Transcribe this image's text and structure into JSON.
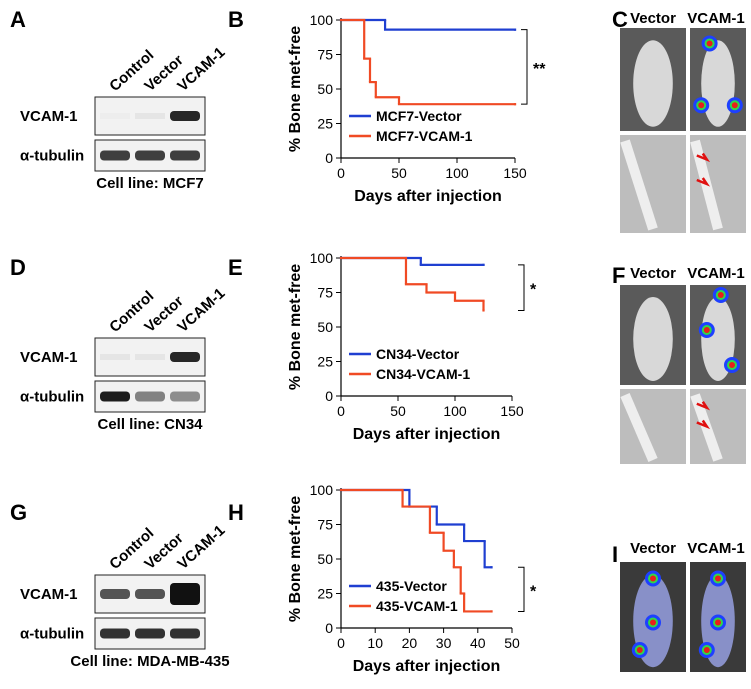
{
  "chart_data": [
    {
      "type": "line",
      "step": true,
      "ylabel": "% Bone met-free",
      "xlabel": "Days after injection",
      "xlim": [
        0,
        150
      ],
      "xticks": [
        0,
        50,
        100,
        150
      ],
      "ylim": [
        0,
        100
      ],
      "yticks": [
        0,
        25,
        50,
        75,
        100
      ],
      "legend": "lower left",
      "annotation": "**",
      "series": [
        {
          "name": "MCF7-Vector",
          "color": "#1f3fd1",
          "x": [
            0,
            38,
            150
          ],
          "values": [
            100,
            93,
            93
          ]
        },
        {
          "name": "MCF7-VCAM-1",
          "color": "#f04a24",
          "x": [
            0,
            20,
            25,
            30,
            50,
            150
          ],
          "values": [
            100,
            72,
            55,
            44,
            39,
            39
          ]
        }
      ]
    },
    {
      "type": "line",
      "step": true,
      "ylabel": "% Bone met-free",
      "xlabel": "Days after injection",
      "xlim": [
        0,
        150
      ],
      "xticks": [
        0,
        50,
        100,
        150
      ],
      "ylim": [
        0,
        100
      ],
      "yticks": [
        0,
        25,
        50,
        75,
        100
      ],
      "legend": "lower left",
      "annotation": "*",
      "series": [
        {
          "name": "CN34-Vector",
          "color": "#1f3fd1",
          "x": [
            0,
            70,
            125
          ],
          "values": [
            100,
            95,
            95
          ]
        },
        {
          "name": "CN34-VCAM-1",
          "color": "#f04a24",
          "x": [
            0,
            57,
            75,
            100,
            125
          ],
          "values": [
            100,
            81,
            75,
            69,
            62
          ]
        }
      ]
    },
    {
      "type": "line",
      "step": true,
      "ylabel": "% Bone met-free",
      "xlabel": "Days after injection",
      "xlim": [
        0,
        50
      ],
      "xticks": [
        0,
        10,
        20,
        30,
        40,
        50
      ],
      "ylim": [
        0,
        100
      ],
      "yticks": [
        0,
        25,
        50,
        75,
        100
      ],
      "legend": "lower left",
      "annotation": "*",
      "series": [
        {
          "name": "435-Vector",
          "color": "#1f3fd1",
          "x": [
            0,
            20,
            28,
            36,
            42,
            44
          ],
          "values": [
            100,
            88,
            75,
            63,
            44,
            44
          ]
        },
        {
          "name": "435-VCAM-1",
          "color": "#f04a24",
          "x": [
            0,
            18,
            26,
            30,
            33,
            35,
            36,
            44
          ],
          "values": [
            100,
            88,
            69,
            56,
            44,
            25,
            12,
            12
          ]
        }
      ]
    }
  ],
  "panels": {
    "letters": [
      "A",
      "B",
      "C",
      "D",
      "E",
      "F",
      "G",
      "H",
      "I"
    ],
    "blots": [
      {
        "lanes": [
          "Control",
          "Vector",
          "VCAM-1"
        ],
        "rows": [
          "VCAM-1",
          "α-tubulin"
        ],
        "caption": "Cell line: MCF7"
      },
      {
        "lanes": [
          "Control",
          "Vector",
          "VCAM-1"
        ],
        "rows": [
          "VCAM-1",
          "α-tubulin"
        ],
        "caption": "Cell line: CN34"
      },
      {
        "lanes": [
          "Control",
          "Vector",
          "VCAM-1"
        ],
        "rows": [
          "VCAM-1",
          "α-tubulin"
        ],
        "caption": "Cell line: MDA-MB-435"
      }
    ],
    "imaging": [
      {
        "labels": [
          "Vector",
          "VCAM-1"
        ]
      },
      {
        "labels": [
          "Vector",
          "VCAM-1"
        ]
      },
      {
        "labels": [
          "Vector",
          "VCAM-1"
        ]
      }
    ]
  }
}
